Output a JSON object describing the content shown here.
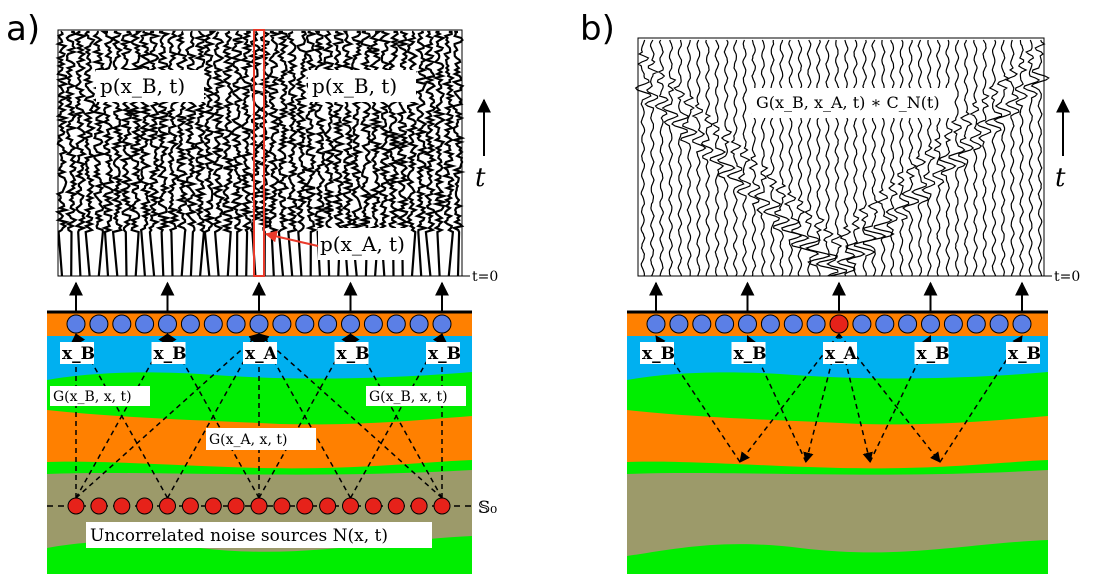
{
  "panel_a": {
    "label": "a)",
    "wave_top_label_left": "p(x_B, t)",
    "wave_top_label_right": "p(x_B, t)",
    "highlight_label": "p(x_A, t)",
    "t_label": "t",
    "t0_label": "t=0",
    "receiver_labels": [
      "x_B",
      "x_B",
      "x_A",
      "x_B",
      "x_B"
    ],
    "green_labels": [
      "G(x_B, x, t)",
      "G(x_A, x, t)",
      "G(x_B, x, t)"
    ],
    "surface_label": "𝕊₀",
    "noise_label": "Uncorrelated noise sources N(x, t)"
  },
  "panel_b": {
    "label": "b)",
    "wave_label": "G(x_B, x_A, t) ∗ C_N(t)",
    "t_label": "t",
    "t0_label": "t=0",
    "receiver_labels": [
      "x_B",
      "x_B",
      "x_A",
      "x_B",
      "x_B"
    ]
  },
  "colors": {
    "orange": "#ff8000",
    "blue": "#00b0f0",
    "green": "#00ee00",
    "brown": "#9c9a6a",
    "receiver": "#5b7fe6",
    "source": "#e6221a",
    "highlight": "#e83a2a"
  }
}
